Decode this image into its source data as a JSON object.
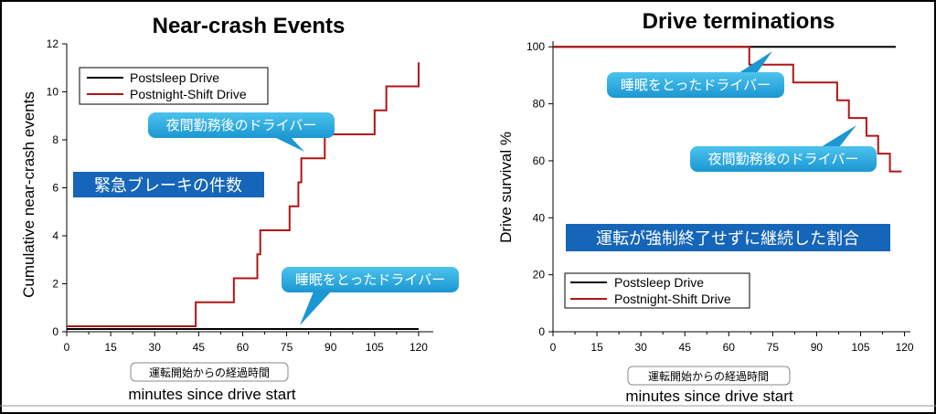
{
  "chart_data": [
    {
      "type": "line",
      "title": "Near-crash Events",
      "xlabel": "minutes since drive start",
      "xlabel_jp": "運転開始からの経過時間",
      "ylabel": "Cumulative near-crash events",
      "xlim": [
        0,
        125
      ],
      "ylim": [
        0,
        12
      ],
      "xticks": [
        0,
        15,
        30,
        45,
        60,
        75,
        90,
        105,
        120
      ],
      "yticks": [
        0,
        2,
        4,
        6,
        8,
        10,
        12
      ],
      "legend": "top-left",
      "series": [
        {
          "name": "Postsleep Drive",
          "color": "#000000",
          "step": true,
          "x": [
            0,
            44,
            120
          ],
          "y": [
            0,
            0,
            0
          ]
        },
        {
          "name": "Postnight-Shift Drive",
          "color": "#b01515",
          "step": true,
          "x": [
            0,
            44,
            57,
            65,
            66,
            76,
            79,
            80,
            88,
            105,
            109,
            120
          ],
          "y": [
            0,
            1,
            2,
            3,
            4,
            5,
            6,
            7,
            8,
            9,
            10,
            11
          ]
        }
      ],
      "annotations": {
        "band": "緊急ブレーキの件数",
        "callout_night": "夜間勤務後のドライバー",
        "callout_sleep": "睡眠をとったドライバー"
      }
    },
    {
      "type": "line",
      "title": "Drive terminations",
      "xlabel": "minutes since drive start",
      "xlabel_jp": "運転開始からの経過時間",
      "ylabel": "Drive survival %",
      "xlim": [
        0,
        122
      ],
      "ylim": [
        0,
        102
      ],
      "xticks": [
        0,
        15,
        30,
        45,
        60,
        75,
        90,
        105,
        120
      ],
      "yticks": [
        0,
        20,
        40,
        60,
        80,
        100
      ],
      "legend": "bottom-left",
      "series": [
        {
          "name": "Postsleep Drive",
          "color": "#000000",
          "step": true,
          "x": [
            0,
            117
          ],
          "y": [
            100,
            100
          ]
        },
        {
          "name": "Postnight-Shift Drive",
          "color": "#b01515",
          "step": true,
          "x": [
            0,
            67,
            82,
            97,
            101,
            107,
            111,
            115,
            117,
            119
          ],
          "y": [
            100,
            93.75,
            87.5,
            81.25,
            75,
            68.75,
            62.5,
            56.25,
            56.25,
            56.25
          ]
        }
      ],
      "annotations": {
        "band": "運転が強制終了せずに継続した割合",
        "callout_sleep": "睡眠をとったドライバー",
        "callout_night": "夜間勤務後のドライバー"
      }
    }
  ]
}
